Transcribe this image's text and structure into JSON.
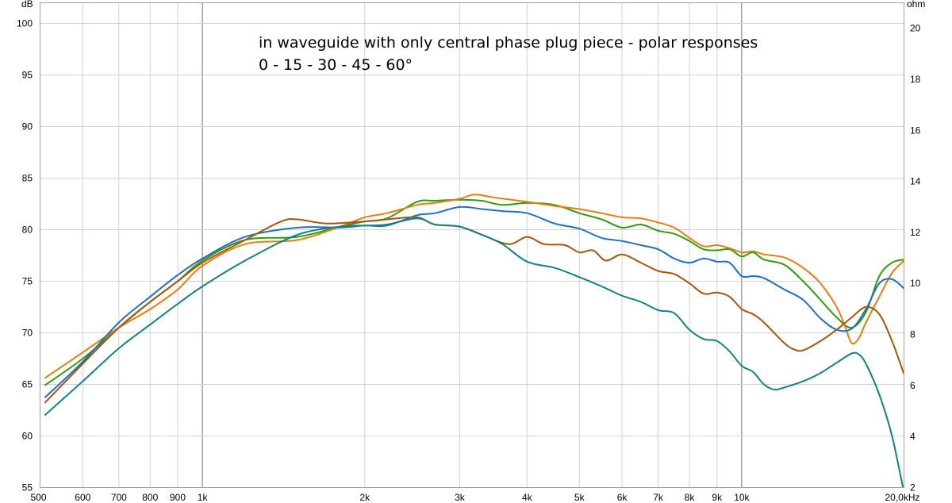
{
  "chart_data": {
    "type": "line",
    "title_lines": [
      "in waveguide with only central phase plug piece - polar responses",
      "0 - 15 - 30 - 45 - 60°"
    ],
    "y_left_unit": "dB",
    "y_right_unit": "ohm",
    "x_scale": "log",
    "xlim": [
      500,
      20000
    ],
    "ylim": [
      55,
      102
    ],
    "ylim_right": [
      2,
      21
    ],
    "grid": true,
    "x_ticks": [
      {
        "v": 500,
        "label": "500"
      },
      {
        "v": 600,
        "label": "600"
      },
      {
        "v": 700,
        "label": "700"
      },
      {
        "v": 800,
        "label": "800"
      },
      {
        "v": 900,
        "label": "900"
      },
      {
        "v": 1000,
        "label": "1k"
      },
      {
        "v": 2000,
        "label": "2k"
      },
      {
        "v": 3000,
        "label": "3k"
      },
      {
        "v": 4000,
        "label": "4k"
      },
      {
        "v": 5000,
        "label": "5k"
      },
      {
        "v": 6000,
        "label": "6k"
      },
      {
        "v": 7000,
        "label": "7k"
      },
      {
        "v": 8000,
        "label": "8k"
      },
      {
        "v": 9000,
        "label": "9k"
      },
      {
        "v": 10000,
        "label": "10k"
      },
      {
        "v": 20000,
        "label": "20,0kHz"
      }
    ],
    "x_major": [
      1000,
      10000
    ],
    "y_ticks_left": [
      {
        "v": 100,
        "label": "100"
      },
      {
        "v": 95,
        "label": "95"
      },
      {
        "v": 90,
        "label": "90"
      },
      {
        "v": 85,
        "label": "85"
      },
      {
        "v": 80,
        "label": "80"
      },
      {
        "v": 75,
        "label": "75"
      },
      {
        "v": 70,
        "label": "70"
      },
      {
        "v": 65,
        "label": "65"
      },
      {
        "v": 60,
        "label": "60"
      },
      {
        "v": 55,
        "label": "55"
      }
    ],
    "y_ticks_right": [
      {
        "v": 20,
        "label": "20"
      },
      {
        "v": 18,
        "label": "18"
      },
      {
        "v": 16,
        "label": "16"
      },
      {
        "v": 14,
        "label": "14"
      },
      {
        "v": 12,
        "label": "12"
      },
      {
        "v": 10,
        "label": "10"
      },
      {
        "v": 8,
        "label": "8"
      },
      {
        "v": 6,
        "label": "6"
      },
      {
        "v": 4,
        "label": "4"
      },
      {
        "v": 2,
        "label": "2"
      }
    ],
    "series": [
      {
        "color": "#2f9b0f",
        "points": [
          [
            510,
            64.9
          ],
          [
            600,
            67.5
          ],
          [
            700,
            70.5
          ],
          [
            800,
            73
          ],
          [
            900,
            75
          ],
          [
            1000,
            77
          ],
          [
            1200,
            79
          ],
          [
            1500,
            79.3
          ],
          [
            1800,
            80.3
          ],
          [
            2000,
            80.8
          ],
          [
            2200,
            81.1
          ],
          [
            2500,
            82.7
          ],
          [
            2700,
            82.8
          ],
          [
            3000,
            82.9
          ],
          [
            3300,
            82.8
          ],
          [
            3600,
            82.4
          ],
          [
            4000,
            82.6
          ],
          [
            4500,
            82.4
          ],
          [
            5000,
            81.6
          ],
          [
            5500,
            81
          ],
          [
            6000,
            80.2
          ],
          [
            6500,
            80.5
          ],
          [
            7000,
            79.9
          ],
          [
            7500,
            79.6
          ],
          [
            8000,
            78.9
          ],
          [
            8500,
            78.1
          ],
          [
            9000,
            78
          ],
          [
            9500,
            78.1
          ],
          [
            10000,
            77.4
          ],
          [
            10500,
            77.8
          ],
          [
            11000,
            77.1
          ],
          [
            12000,
            76.6
          ],
          [
            13000,
            75
          ],
          [
            14000,
            73.2
          ],
          [
            15000,
            71.5
          ],
          [
            16000,
            70.5
          ],
          [
            17000,
            72
          ],
          [
            18000,
            75.5
          ],
          [
            19000,
            76.8
          ],
          [
            20000,
            77.1
          ]
        ]
      },
      {
        "color": "#e87c0f",
        "points": [
          [
            510,
            65.6
          ],
          [
            600,
            68.1
          ],
          [
            700,
            70.5
          ],
          [
            800,
            72.3
          ],
          [
            900,
            74.2
          ],
          [
            1000,
            76.5
          ],
          [
            1200,
            78.6
          ],
          [
            1500,
            79
          ],
          [
            1800,
            80.3
          ],
          [
            2000,
            81.2
          ],
          [
            2200,
            81.6
          ],
          [
            2500,
            82.4
          ],
          [
            2700,
            82.6
          ],
          [
            3000,
            83
          ],
          [
            3200,
            83.4
          ],
          [
            3500,
            83.1
          ],
          [
            4000,
            82.7
          ],
          [
            4500,
            82.3
          ],
          [
            5000,
            82
          ],
          [
            5500,
            81.6
          ],
          [
            6000,
            81.2
          ],
          [
            6500,
            81.1
          ],
          [
            7000,
            80.7
          ],
          [
            7500,
            80.2
          ],
          [
            8000,
            79.2
          ],
          [
            8500,
            78.4
          ],
          [
            9000,
            78.5
          ],
          [
            9500,
            78.2
          ],
          [
            10000,
            77.8
          ],
          [
            10500,
            77.9
          ],
          [
            11000,
            77.6
          ],
          [
            12000,
            77.3
          ],
          [
            13000,
            76.3
          ],
          [
            14000,
            74.8
          ],
          [
            15000,
            72.5
          ],
          [
            15500,
            70.8
          ],
          [
            16000,
            69
          ],
          [
            16500,
            69.5
          ],
          [
            17000,
            71
          ],
          [
            18000,
            73.5
          ],
          [
            19000,
            75.8
          ],
          [
            20000,
            77
          ]
        ]
      },
      {
        "color": "#1f6fc4",
        "points": [
          [
            510,
            63.7
          ],
          [
            600,
            67.2
          ],
          [
            700,
            71
          ],
          [
            800,
            73.5
          ],
          [
            900,
            75.6
          ],
          [
            1000,
            77.2
          ],
          [
            1200,
            79.3
          ],
          [
            1500,
            80.2
          ],
          [
            1800,
            80.2
          ],
          [
            2000,
            80.4
          ],
          [
            2200,
            80.4
          ],
          [
            2500,
            81.4
          ],
          [
            2700,
            81.6
          ],
          [
            3000,
            82.2
          ],
          [
            3300,
            82
          ],
          [
            3600,
            81.8
          ],
          [
            4000,
            81.6
          ],
          [
            4500,
            80.6
          ],
          [
            5000,
            80.1
          ],
          [
            5500,
            79.2
          ],
          [
            6000,
            78.9
          ],
          [
            6500,
            78.5
          ],
          [
            7000,
            78.1
          ],
          [
            7500,
            77.2
          ],
          [
            8000,
            76.8
          ],
          [
            8500,
            77.2
          ],
          [
            9000,
            76.9
          ],
          [
            9500,
            76.8
          ],
          [
            10000,
            75.5
          ],
          [
            10500,
            75.5
          ],
          [
            11000,
            75.3
          ],
          [
            12000,
            74.2
          ],
          [
            13000,
            73.2
          ],
          [
            14000,
            71.4
          ],
          [
            15000,
            70.3
          ],
          [
            16000,
            70.4
          ],
          [
            17000,
            72.3
          ],
          [
            18000,
            74.8
          ],
          [
            19000,
            75.2
          ],
          [
            20000,
            74.3
          ]
        ]
      },
      {
        "color": "#a8540e",
        "points": [
          [
            510,
            63.2
          ],
          [
            600,
            67
          ],
          [
            700,
            70.5
          ],
          [
            800,
            73
          ],
          [
            900,
            75
          ],
          [
            1000,
            76.8
          ],
          [
            1200,
            79
          ],
          [
            1400,
            80.8
          ],
          [
            1500,
            81
          ],
          [
            1700,
            80.6
          ],
          [
            2000,
            80.8
          ],
          [
            2200,
            81
          ],
          [
            2500,
            81.2
          ],
          [
            2700,
            80.5
          ],
          [
            3000,
            80.3
          ],
          [
            3300,
            79.5
          ],
          [
            3700,
            78.6
          ],
          [
            4000,
            79.3
          ],
          [
            4300,
            78.6
          ],
          [
            4700,
            78.5
          ],
          [
            5000,
            77.8
          ],
          [
            5300,
            78
          ],
          [
            5600,
            77
          ],
          [
            6000,
            77.6
          ],
          [
            6500,
            76.8
          ],
          [
            7000,
            76
          ],
          [
            7500,
            75.7
          ],
          [
            8000,
            74.8
          ],
          [
            8500,
            73.8
          ],
          [
            9000,
            73.9
          ],
          [
            9500,
            73.5
          ],
          [
            10000,
            72.3
          ],
          [
            10500,
            71.8
          ],
          [
            11000,
            71
          ],
          [
            12000,
            69
          ],
          [
            12500,
            68.4
          ],
          [
            13000,
            68.3
          ],
          [
            14000,
            69.2
          ],
          [
            15000,
            70.3
          ],
          [
            16000,
            71.5
          ],
          [
            17000,
            72.5
          ],
          [
            18000,
            71.8
          ],
          [
            19000,
            69.2
          ],
          [
            20000,
            66
          ]
        ]
      },
      {
        "color": "#11837f",
        "points": [
          [
            510,
            62
          ],
          [
            600,
            65.3
          ],
          [
            700,
            68.5
          ],
          [
            800,
            70.8
          ],
          [
            900,
            72.8
          ],
          [
            1000,
            74.5
          ],
          [
            1200,
            77
          ],
          [
            1500,
            79.5
          ],
          [
            1800,
            80.3
          ],
          [
            2000,
            80.4
          ],
          [
            2200,
            80.5
          ],
          [
            2500,
            81.1
          ],
          [
            2700,
            80.5
          ],
          [
            3000,
            80.3
          ],
          [
            3300,
            79.5
          ],
          [
            3600,
            78.6
          ],
          [
            4000,
            76.9
          ],
          [
            4500,
            76.3
          ],
          [
            5000,
            75.4
          ],
          [
            5500,
            74.5
          ],
          [
            6000,
            73.6
          ],
          [
            6500,
            73
          ],
          [
            7000,
            72.2
          ],
          [
            7500,
            71.9
          ],
          [
            8000,
            70.3
          ],
          [
            8500,
            69.4
          ],
          [
            9000,
            69.2
          ],
          [
            9500,
            68.2
          ],
          [
            10000,
            66.8
          ],
          [
            10500,
            66.2
          ],
          [
            11000,
            65
          ],
          [
            11500,
            64.5
          ],
          [
            12000,
            64.7
          ],
          [
            13000,
            65.3
          ],
          [
            14000,
            66.1
          ],
          [
            15000,
            67.1
          ],
          [
            16000,
            68
          ],
          [
            16500,
            67.9
          ],
          [
            17000,
            67
          ],
          [
            18000,
            64
          ],
          [
            19000,
            60
          ],
          [
            20000,
            54.5
          ]
        ]
      }
    ]
  }
}
